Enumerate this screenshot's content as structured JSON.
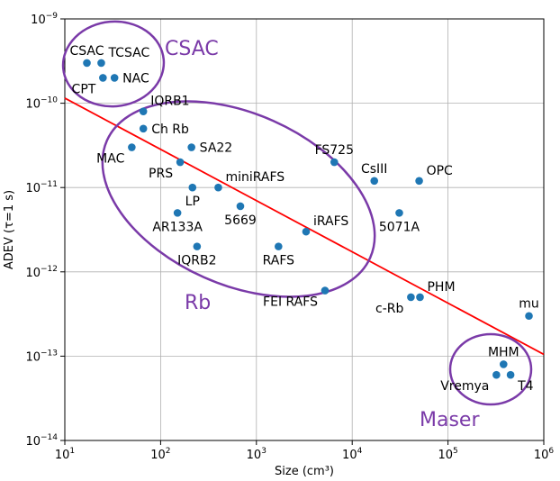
{
  "chart_data": {
    "type": "scatter",
    "x_scale": "log",
    "y_scale": "log",
    "xlim": [
      10,
      1000000
    ],
    "ylim": [
      1e-14,
      1e-09
    ],
    "grid": true,
    "xlabel": "Size (cm³)",
    "ylabel": "ADEV (τ=1 s)",
    "x_ticks": [
      {
        "value": 10,
        "base": "10",
        "exp": "1"
      },
      {
        "value": 100,
        "base": "10",
        "exp": "2"
      },
      {
        "value": 1000,
        "base": "10",
        "exp": "3"
      },
      {
        "value": 10000,
        "base": "10",
        "exp": "4"
      },
      {
        "value": 100000,
        "base": "10",
        "exp": "5"
      },
      {
        "value": 1000000,
        "base": "10",
        "exp": "6"
      }
    ],
    "y_ticks": [
      {
        "value": 1e-09,
        "base": "10",
        "exp": "−9"
      },
      {
        "value": 1e-10,
        "base": "10",
        "exp": "−10"
      },
      {
        "value": 1e-11,
        "base": "10",
        "exp": "−11"
      },
      {
        "value": 1e-12,
        "base": "10",
        "exp": "−12"
      },
      {
        "value": 1e-13,
        "base": "10",
        "exp": "−13"
      },
      {
        "value": 1e-14,
        "base": "10",
        "exp": "−14"
      }
    ],
    "point_color": "#1f77b4",
    "points": [
      {
        "label": "CSAC",
        "x": 17,
        "y": 3e-10,
        "pos": "above"
      },
      {
        "label": "TCSAC",
        "x": 24,
        "y": 3e-10,
        "pos": "above-right"
      },
      {
        "label": "CPT",
        "x": 25,
        "y": 2e-10,
        "pos": "below-left"
      },
      {
        "label": "NAC",
        "x": 33,
        "y": 2e-10,
        "pos": "right"
      },
      {
        "label": "IQRB1",
        "x": 66,
        "y": 8e-11,
        "pos": "above-right"
      },
      {
        "label": "Ch Rb",
        "x": 66,
        "y": 5e-11,
        "pos": "right"
      },
      {
        "label": "MAC",
        "x": 50,
        "y": 3e-11,
        "pos": "below-left"
      },
      {
        "label": "SA22",
        "x": 210,
        "y": 3e-11,
        "pos": "right"
      },
      {
        "label": "PRS",
        "x": 160,
        "y": 2e-11,
        "pos": "below-left"
      },
      {
        "label": "LP",
        "x": 215,
        "y": 1e-11,
        "pos": "below"
      },
      {
        "label": "miniRAFS",
        "x": 400,
        "y": 1e-11,
        "pos": "above-right"
      },
      {
        "label": "AR133A",
        "x": 150,
        "y": 5e-12,
        "pos": "below"
      },
      {
        "label": "5669",
        "x": 680,
        "y": 6e-12,
        "pos": "below"
      },
      {
        "label": "IQRB2",
        "x": 240,
        "y": 2e-12,
        "pos": "below"
      },
      {
        "label": "RAFS",
        "x": 1700,
        "y": 2e-12,
        "pos": "below"
      },
      {
        "label": "iRAFS",
        "x": 3300,
        "y": 3e-12,
        "pos": "above-right"
      },
      {
        "label": "FS725",
        "x": 6500,
        "y": 2e-11,
        "pos": "above"
      },
      {
        "label": "CsIII",
        "x": 17000,
        "y": 1.2e-11,
        "pos": "above"
      },
      {
        "label": "OPC",
        "x": 50000,
        "y": 1.2e-11,
        "pos": "above-right"
      },
      {
        "label": "5071A",
        "x": 31000,
        "y": 5e-12,
        "pos": "below"
      },
      {
        "label": "FEI RAFS",
        "x": 5200,
        "y": 6e-13,
        "pos": "below-left"
      },
      {
        "label": "c-Rb",
        "x": 41000,
        "y": 5e-13,
        "pos": "below-left"
      },
      {
        "label": "PHM",
        "x": 51000,
        "y": 5e-13,
        "pos": "above-right"
      },
      {
        "label": "mu",
        "x": 700000,
        "y": 3e-13,
        "pos": "above"
      },
      {
        "label": "MHM",
        "x": 380000,
        "y": 8e-14,
        "pos": "above"
      },
      {
        "label": "Vremya",
        "x": 320000,
        "y": 6e-14,
        "pos": "below-left"
      },
      {
        "label": "T4",
        "x": 450000,
        "y": 6e-14,
        "pos": "below-right"
      }
    ],
    "fit_line": {
      "color": "#ff0000",
      "from": {
        "x": 10,
        "y": 1.15e-10
      },
      "to": {
        "x": 1000000,
        "y": 1.05e-13
      }
    },
    "groups": [
      {
        "label": "CSAC",
        "color": "#7a3aa8"
      },
      {
        "label": "Rb",
        "color": "#7a3aa8"
      },
      {
        "label": "Maser",
        "color": "#7a3aa8"
      }
    ]
  }
}
